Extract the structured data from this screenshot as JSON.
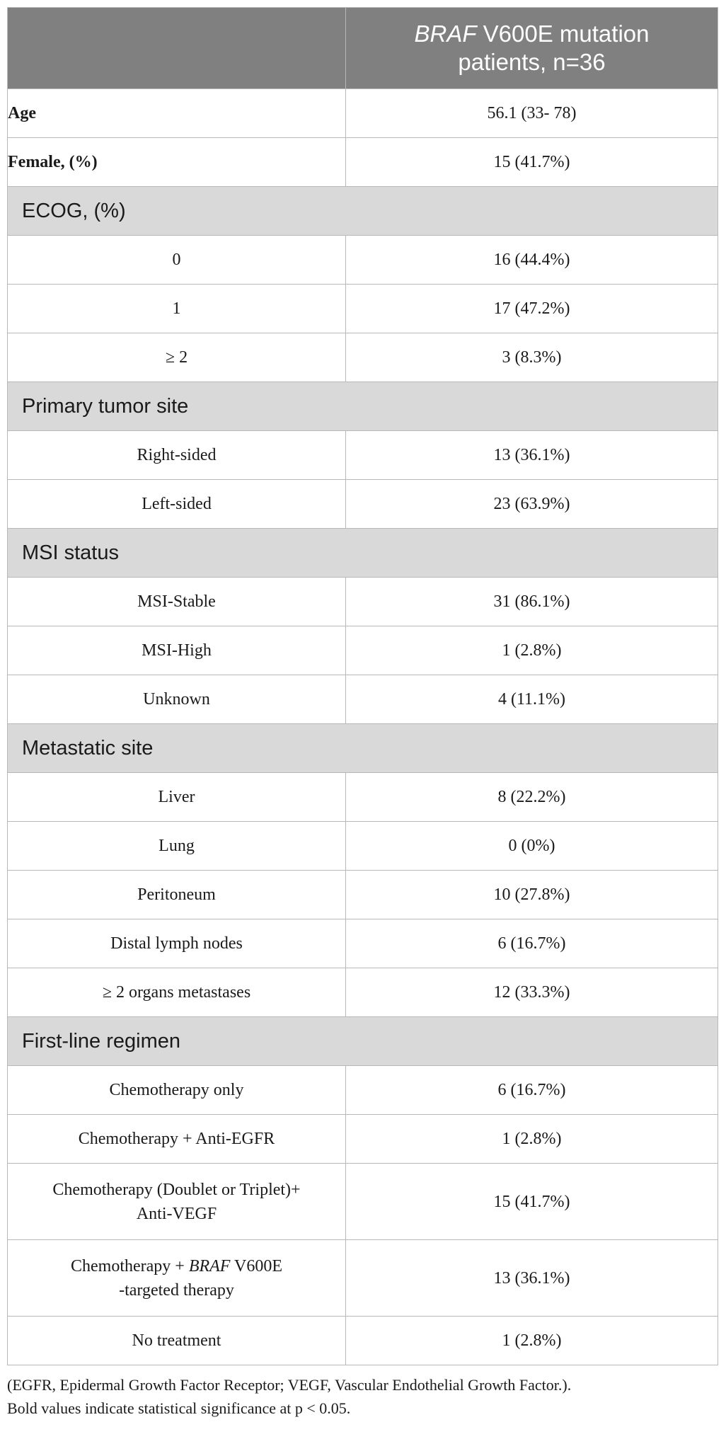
{
  "header": {
    "col_italic": "BRAF",
    "col_rest_line1": " V600E mutation",
    "col_line2": "patients, n=36"
  },
  "rows": {
    "age_label": "Age",
    "age_value": "56.1 (33- 78)",
    "female_label": "Female, (%)",
    "female_value": "15 (41.7%)"
  },
  "sections": [
    {
      "title": "ECOG, (%)",
      "items": [
        {
          "label": "0",
          "value": "16 (44.4%)"
        },
        {
          "label": "1",
          "value": "17 (47.2%)"
        },
        {
          "label": "≥ 2",
          "value": "3 (8.3%)"
        }
      ]
    },
    {
      "title": "Primary tumor site",
      "items": [
        {
          "label": "Right-sided",
          "value": "13 (36.1%)"
        },
        {
          "label": "Left-sided",
          "value": "23 (63.9%)"
        }
      ]
    },
    {
      "title": "MSI status",
      "items": [
        {
          "label": "MSI-Stable",
          "value": "31 (86.1%)"
        },
        {
          "label": "MSI-High",
          "value": "1 (2.8%)"
        },
        {
          "label": "Unknown",
          "value": "4 (11.1%)"
        }
      ]
    },
    {
      "title": "Metastatic site",
      "items": [
        {
          "label": "Liver",
          "value": "8 (22.2%)"
        },
        {
          "label": "Lung",
          "value": "0 (0%)"
        },
        {
          "label": "Peritoneum",
          "value": "10 (27.8%)"
        },
        {
          "label": "Distal lymph nodes",
          "value": "6 (16.7%)"
        },
        {
          "label": "≥ 2 organs metastases",
          "value": "12 (33.3%)"
        }
      ]
    },
    {
      "title": "First-line regimen",
      "items": [
        {
          "label": "Chemotherapy only",
          "value": "6 (16.7%)"
        },
        {
          "label": "Chemotherapy + Anti-EGFR",
          "value": "1 (2.8%)"
        },
        {
          "label_line1": "Chemotherapy (Doublet or Triplet)+",
          "label_line2": "Anti-VEGF",
          "value": "15 (41.7%)"
        },
        {
          "label_line1_pre": "Chemotherapy + ",
          "label_line1_italic": "BRAF",
          "label_line1_post": " V600E",
          "label_line2": "-targeted therapy",
          "value": "13 (36.1%)"
        },
        {
          "label": "No treatment",
          "value": "1 (2.8%)"
        }
      ]
    }
  ],
  "footnote": {
    "line1": "(EGFR, Epidermal Growth Factor Receptor; VEGF, Vascular Endothelial Growth Factor.).",
    "line2": "Bold values indicate statistical significance at p < 0.05."
  }
}
